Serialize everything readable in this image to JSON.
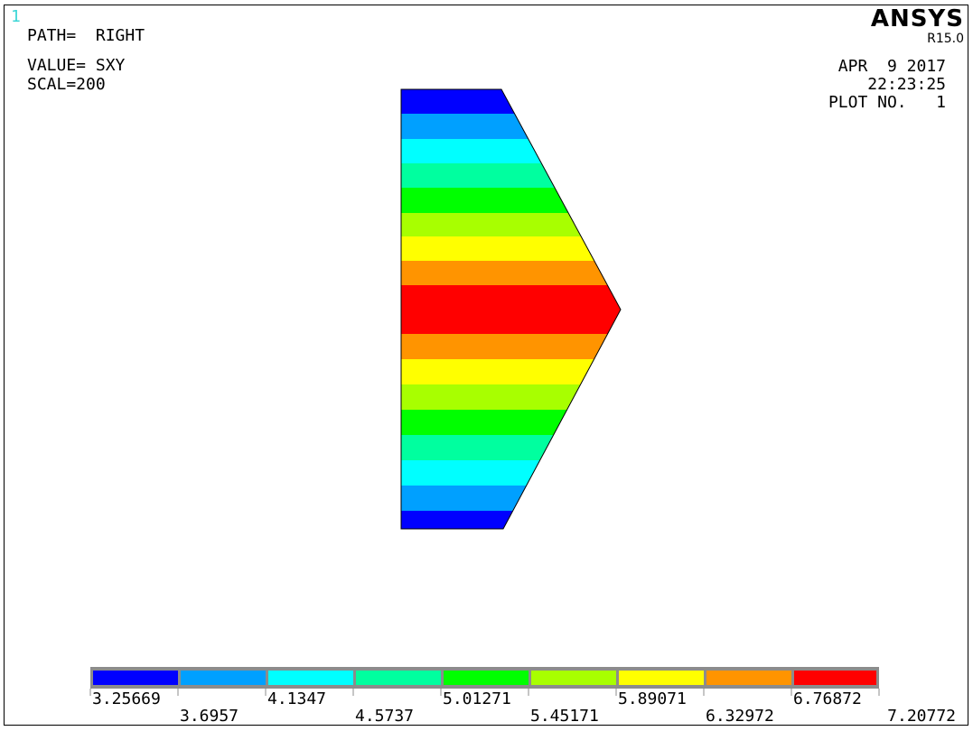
{
  "window_number": "1",
  "header": {
    "path_line": "PATH=  RIGHT",
    "value_line": "VALUE= SXY",
    "scale_line": "SCAL=200"
  },
  "brand": {
    "name": "ANSYS",
    "release": "R15.0"
  },
  "stamp": {
    "date": "APR  9 2017",
    "time": "22:23:25",
    "plot_no": "PLOT NO.   1"
  },
  "colors": {
    "band_1": "#0000ff",
    "band_2": "#00a0ff",
    "band_3": "#00ffff",
    "band_4": "#00ff9f",
    "band_5": "#00ff00",
    "band_6": "#a8ff00",
    "band_7": "#ffff00",
    "band_8": "#ff9400",
    "band_9": "#ff0000"
  },
  "chart_data": {
    "type": "area",
    "contour_levels": [
      "3.25669",
      "3.6957",
      "4.1347",
      "4.5737",
      "5.01271",
      "5.45171",
      "5.89071",
      "6.32972",
      "6.76872",
      "7.20772"
    ],
    "profile_bands": [
      1,
      2,
      3,
      4,
      5,
      6,
      7,
      8,
      9,
      8,
      7,
      6,
      5,
      4,
      3,
      2,
      1
    ],
    "profile_peak": 7.20772
  }
}
